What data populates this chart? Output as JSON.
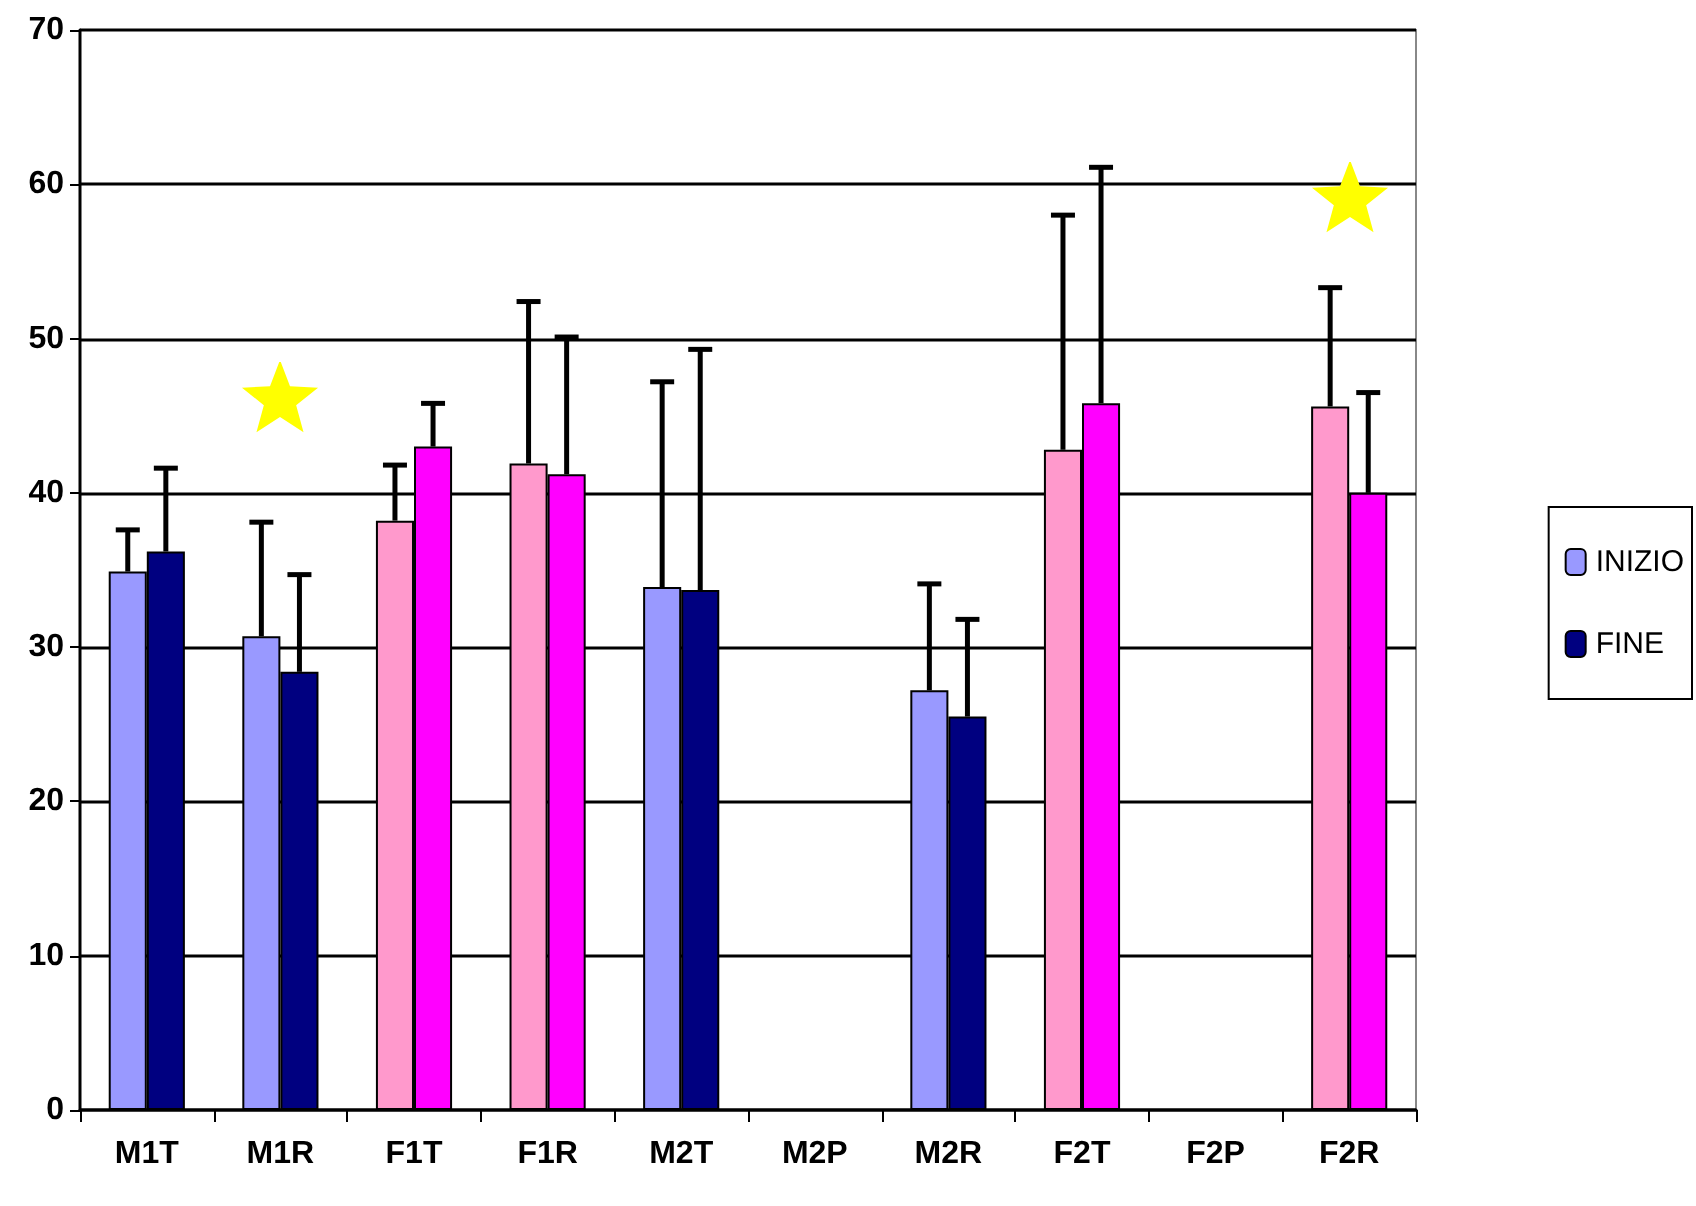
{
  "chart_data": {
    "type": "bar",
    "categories": [
      "M1T",
      "M1R",
      "F1T",
      "F1R",
      "M2T",
      "M2P",
      "M2R",
      "F2T",
      "F2P",
      "F2R"
    ],
    "series": [
      {
        "name": "INIZIO",
        "color": "#9999ff",
        "colors": [
          "#9999ff",
          "#9999ff",
          "#ff99cc",
          "#ff99cc",
          "#9999ff",
          null,
          "#9999ff",
          "#ff99cc",
          null,
          "#ff99cc"
        ],
        "values": [
          34.9,
          30.7,
          38.2,
          41.9,
          33.9,
          null,
          27.2,
          42.8,
          null,
          45.6
        ],
        "errors": [
          [
            34.9,
            37.6
          ],
          [
            30.7,
            38.1
          ],
          [
            38.2,
            41.8
          ],
          [
            41.9,
            52.4
          ],
          [
            33.9,
            47.2
          ],
          null,
          [
            27.2,
            34.1
          ],
          [
            42.8,
            58.0
          ],
          null,
          [
            45.6,
            53.3
          ]
        ]
      },
      {
        "name": "FINE",
        "color": "#000080",
        "colors": [
          "#000080",
          "#000080",
          "#ff00ff",
          "#ff00ff",
          "#000080",
          null,
          "#000080",
          "#ff00ff",
          null,
          "#ff00ff"
        ],
        "values": [
          36.2,
          28.4,
          43.0,
          41.2,
          33.7,
          null,
          25.5,
          45.8,
          null,
          40.0
        ],
        "errors": [
          [
            36.2,
            41.6
          ],
          [
            28.4,
            34.7
          ],
          [
            43.0,
            45.8
          ],
          [
            41.2,
            50.1
          ],
          [
            33.7,
            49.3
          ],
          null,
          [
            25.5,
            31.8
          ],
          [
            45.8,
            61.1
          ],
          null,
          [
            40.0,
            46.5
          ]
        ]
      }
    ],
    "ylim": [
      0,
      70
    ],
    "yticks": [
      0,
      10,
      20,
      30,
      40,
      50,
      60,
      70
    ],
    "grid": "y",
    "legend": "right"
  }
}
